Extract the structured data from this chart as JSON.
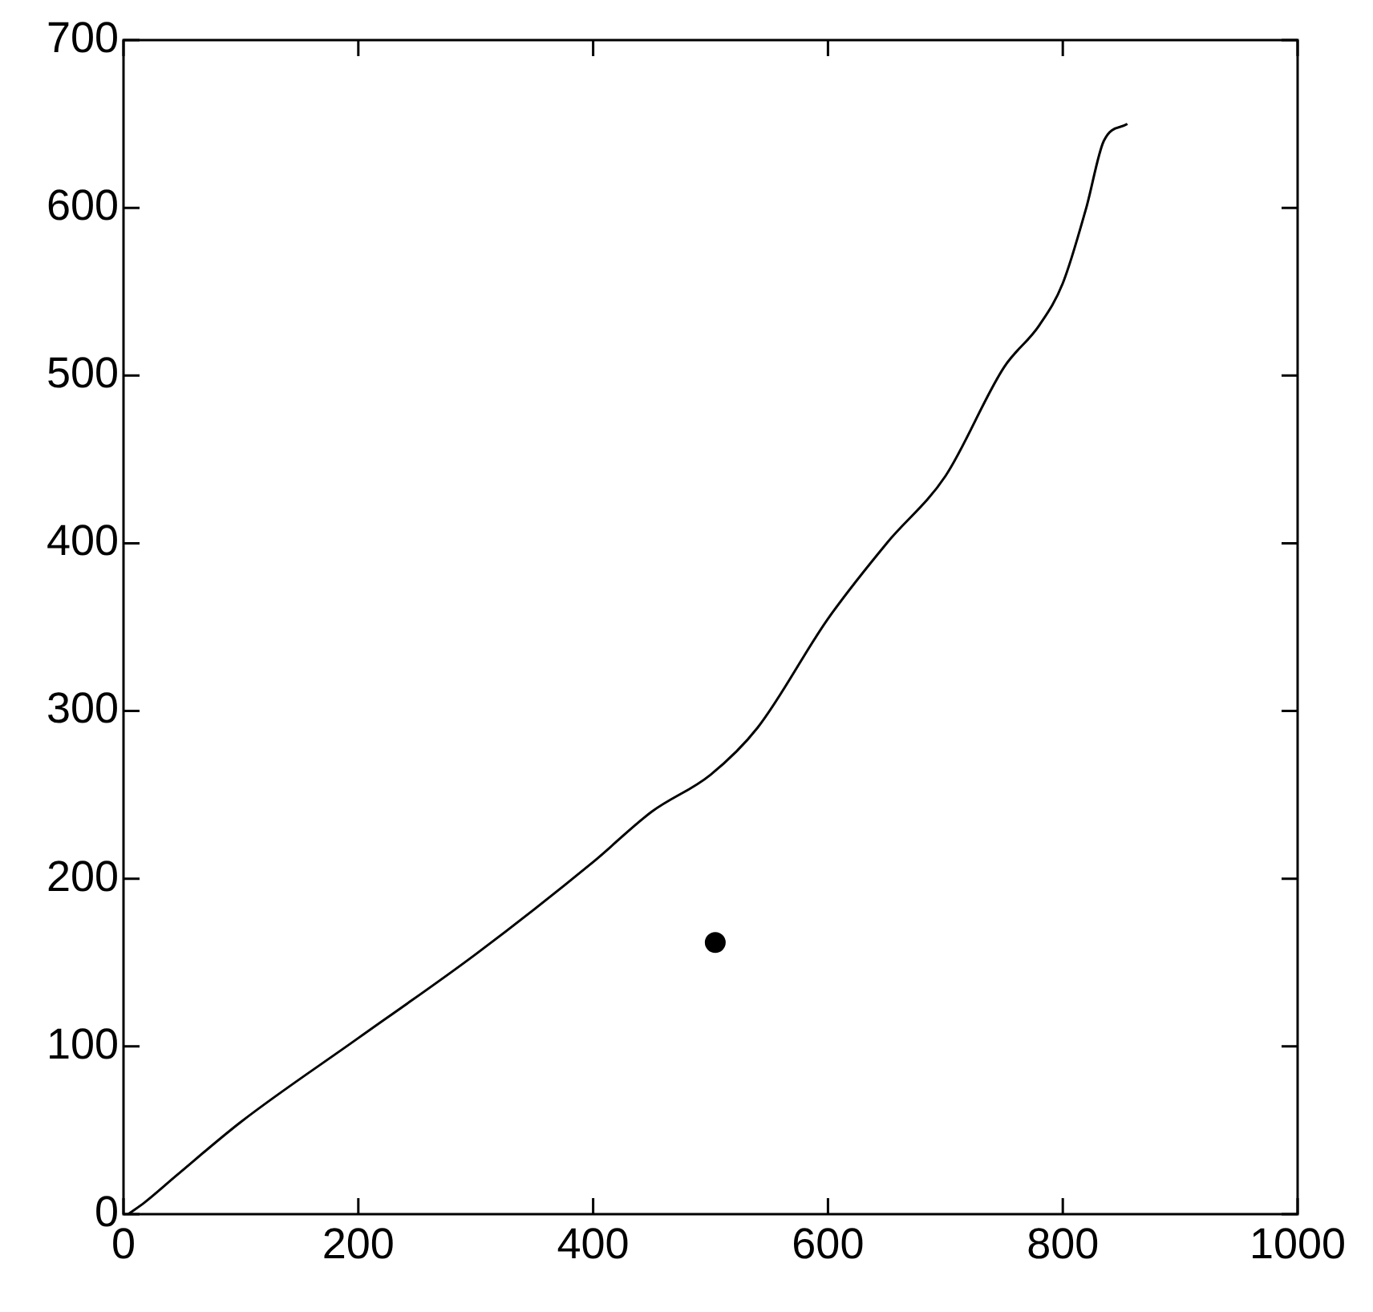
{
  "chart_data": {
    "type": "line",
    "xlim": [
      0,
      1000
    ],
    "ylim": [
      0,
      700
    ],
    "xticks": [
      0,
      200,
      400,
      600,
      800,
      1000
    ],
    "yticks": [
      0,
      100,
      200,
      300,
      400,
      500,
      600,
      700
    ],
    "series": [
      {
        "color": "#000000",
        "x": [
          4,
          18,
          45,
          100,
          200,
          300,
          400,
          450,
          500,
          540,
          600,
          650,
          700,
          750,
          780,
          800,
          820,
          835,
          855
        ],
        "values": [
          0,
          7,
          23,
          55,
          105,
          155,
          210,
          240,
          262,
          290,
          355,
          400,
          440,
          505,
          530,
          555,
          600,
          640,
          650
        ]
      },
      {
        "type": "scatter",
        "color": "#000000",
        "x": [
          504
        ],
        "values": [
          162
        ]
      }
    ]
  }
}
